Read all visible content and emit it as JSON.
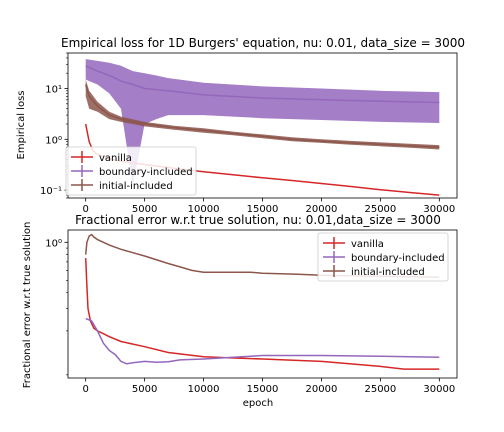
{
  "colors": {
    "vanilla": "#d62728",
    "boundary": "#9467bd",
    "initial": "#8c564b"
  },
  "chart_data": [
    {
      "type": "line",
      "title": "Empirical loss for 1D Burgers' equation, nu: 0.01, data_size = 3000",
      "xlabel": "",
      "ylabel": "Empirical loss",
      "yscale": "log",
      "xlim": [
        -1500,
        31500
      ],
      "ylim": [
        0.07,
        50
      ],
      "xticks": [
        0,
        5000,
        10000,
        15000,
        20000,
        25000,
        30000
      ],
      "xtick_labels": [
        "0",
        "5000",
        "10000",
        "15000",
        "20000",
        "25000",
        "30000"
      ],
      "yticks": [
        0.1,
        1,
        10
      ],
      "ytick_labels": [
        "10⁻¹",
        "10⁰",
        "10¹"
      ],
      "legend": "lower-left",
      "series": [
        {
          "name": "vanilla",
          "x": [
            0,
            100,
            300,
            600,
            1000,
            2000,
            3000,
            5000,
            7500,
            10000,
            12500,
            15000,
            17500,
            20000,
            22500,
            25000,
            27500,
            30000
          ],
          "y": [
            2.0,
            1.5,
            0.9,
            0.6,
            0.5,
            0.42,
            0.37,
            0.32,
            0.27,
            0.23,
            0.2,
            0.175,
            0.155,
            0.135,
            0.118,
            0.102,
            0.09,
            0.08
          ]
        },
        {
          "name": "boundary-included",
          "x": [
            0,
            1000,
            2000,
            3000,
            4000,
            5000,
            6000,
            7000,
            8000,
            10000,
            15000,
            20000,
            25000,
            30000
          ],
          "y": [
            28,
            22,
            18,
            14,
            12,
            10,
            9.5,
            9,
            8.5,
            7.5,
            6.5,
            6.0,
            5.6,
            5.3
          ],
          "band_low": [
            15,
            12,
            8,
            4,
            0.12,
            2,
            2.5,
            3,
            3,
            3,
            2.6,
            2.4,
            2.2,
            2.1
          ],
          "band_high": [
            38,
            35,
            32,
            28,
            22,
            20,
            18,
            16,
            15,
            13,
            11,
            10,
            9,
            8.5
          ]
        },
        {
          "name": "initial-included",
          "x": [
            0,
            300,
            1000,
            2000,
            3000,
            5000,
            7500,
            10000,
            12500,
            15000,
            17500,
            20000,
            22500,
            25000,
            27500,
            30000
          ],
          "y": [
            12,
            7,
            4.5,
            3.0,
            2.5,
            2.0,
            1.7,
            1.5,
            1.3,
            1.15,
            1.0,
            0.92,
            0.85,
            0.8,
            0.75,
            0.7
          ],
          "band_low": [
            7,
            4,
            3.5,
            2.5,
            2.2,
            1.8,
            1.55,
            1.35,
            1.2,
            1.05,
            0.92,
            0.85,
            0.78,
            0.73,
            0.68,
            0.63
          ],
          "band_high": [
            15,
            9,
            5.5,
            3.5,
            2.8,
            2.2,
            1.85,
            1.65,
            1.42,
            1.25,
            1.1,
            1.0,
            0.93,
            0.87,
            0.82,
            0.77
          ]
        }
      ]
    },
    {
      "type": "line",
      "title": "Fractional error w.r.t true solution, nu: 0.01,data_size = 3000",
      "xlabel": "epoch",
      "ylabel": "Fractional error w.r.t true solution",
      "yscale": "log",
      "xlim": [
        -1500,
        31500
      ],
      "ylim": [
        0.085,
        1.25
      ],
      "xticks": [
        0,
        5000,
        10000,
        15000,
        20000,
        25000,
        30000
      ],
      "xtick_labels": [
        "0",
        "5000",
        "10000",
        "15000",
        "20000",
        "25000",
        "30000"
      ],
      "yticks": [
        1
      ],
      "ytick_labels": [
        "10⁰"
      ],
      "legend": "upper-right",
      "series": [
        {
          "name": "vanilla",
          "x": [
            0,
            100,
            200,
            400,
            700,
            1000,
            1500,
            2000,
            3000,
            5000,
            7000,
            10000,
            12000,
            15000,
            20000,
            25000,
            27000,
            30000
          ],
          "y": [
            0.75,
            0.45,
            0.3,
            0.24,
            0.21,
            0.2,
            0.19,
            0.18,
            0.165,
            0.15,
            0.135,
            0.125,
            0.123,
            0.12,
            0.115,
            0.105,
            0.1,
            0.1
          ]
        },
        {
          "name": "boundary-included",
          "x": [
            0,
            500,
            1000,
            1500,
            2000,
            2500,
            3000,
            3500,
            4000,
            5000,
            6000,
            7000,
            8000,
            10000,
            15000,
            20000,
            25000,
            30000
          ],
          "y": [
            0.25,
            0.24,
            0.2,
            0.16,
            0.14,
            0.13,
            0.115,
            0.11,
            0.112,
            0.115,
            0.113,
            0.114,
            0.118,
            0.12,
            0.128,
            0.128,
            0.126,
            0.124
          ]
        },
        {
          "name": "initial-included",
          "x": [
            0,
            100,
            300,
            500,
            700,
            1000,
            1500,
            2000,
            3000,
            5000,
            7000,
            8000,
            9000,
            10000,
            12000,
            14000,
            15000,
            18000,
            20000,
            25000,
            30000
          ],
          "y": [
            0.8,
            1.0,
            1.12,
            1.15,
            1.1,
            1.05,
            1.0,
            0.95,
            0.88,
            0.78,
            0.68,
            0.64,
            0.6,
            0.58,
            0.58,
            0.58,
            0.57,
            0.56,
            0.55,
            0.54,
            0.53
          ]
        }
      ]
    }
  ]
}
